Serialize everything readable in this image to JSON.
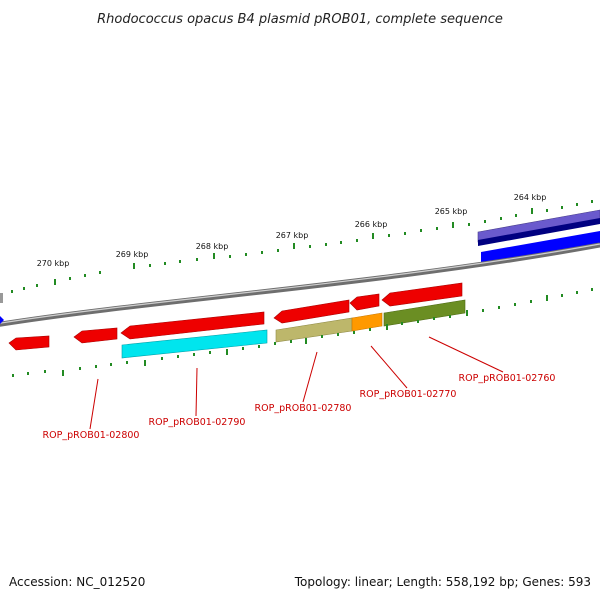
{
  "title": "Rhodococcus opacus B4 plasmid pROB01, complete sequence",
  "footer": {
    "accession": "Accession: NC_012520",
    "summary": "Topology: linear; Length: 558,192 bp; Genes: 593"
  },
  "scale_labels": [
    "270 kbp",
    "269 kbp",
    "268 kbp",
    "267 kbp",
    "266 kbp",
    "265 kbp",
    "264 kbp"
  ],
  "gene_labels": [
    "ROP_pROB01-02800",
    "ROP_pROB01-02790",
    "ROP_pROB01-02780",
    "ROP_pROB01-02770",
    "ROP_pROB01-02760"
  ],
  "colors": {
    "gene_red": "#ee0000",
    "cyan": "#00e5ee",
    "khaki": "#bdb76b",
    "orange": "#ff9900",
    "olive": "#6b8e23",
    "slate_blue": "#6a5acd",
    "navy": "#000080",
    "blue": "#0000ff",
    "backbone": "#888888",
    "tick": "#228b22",
    "label_red": "#cc0000"
  }
}
